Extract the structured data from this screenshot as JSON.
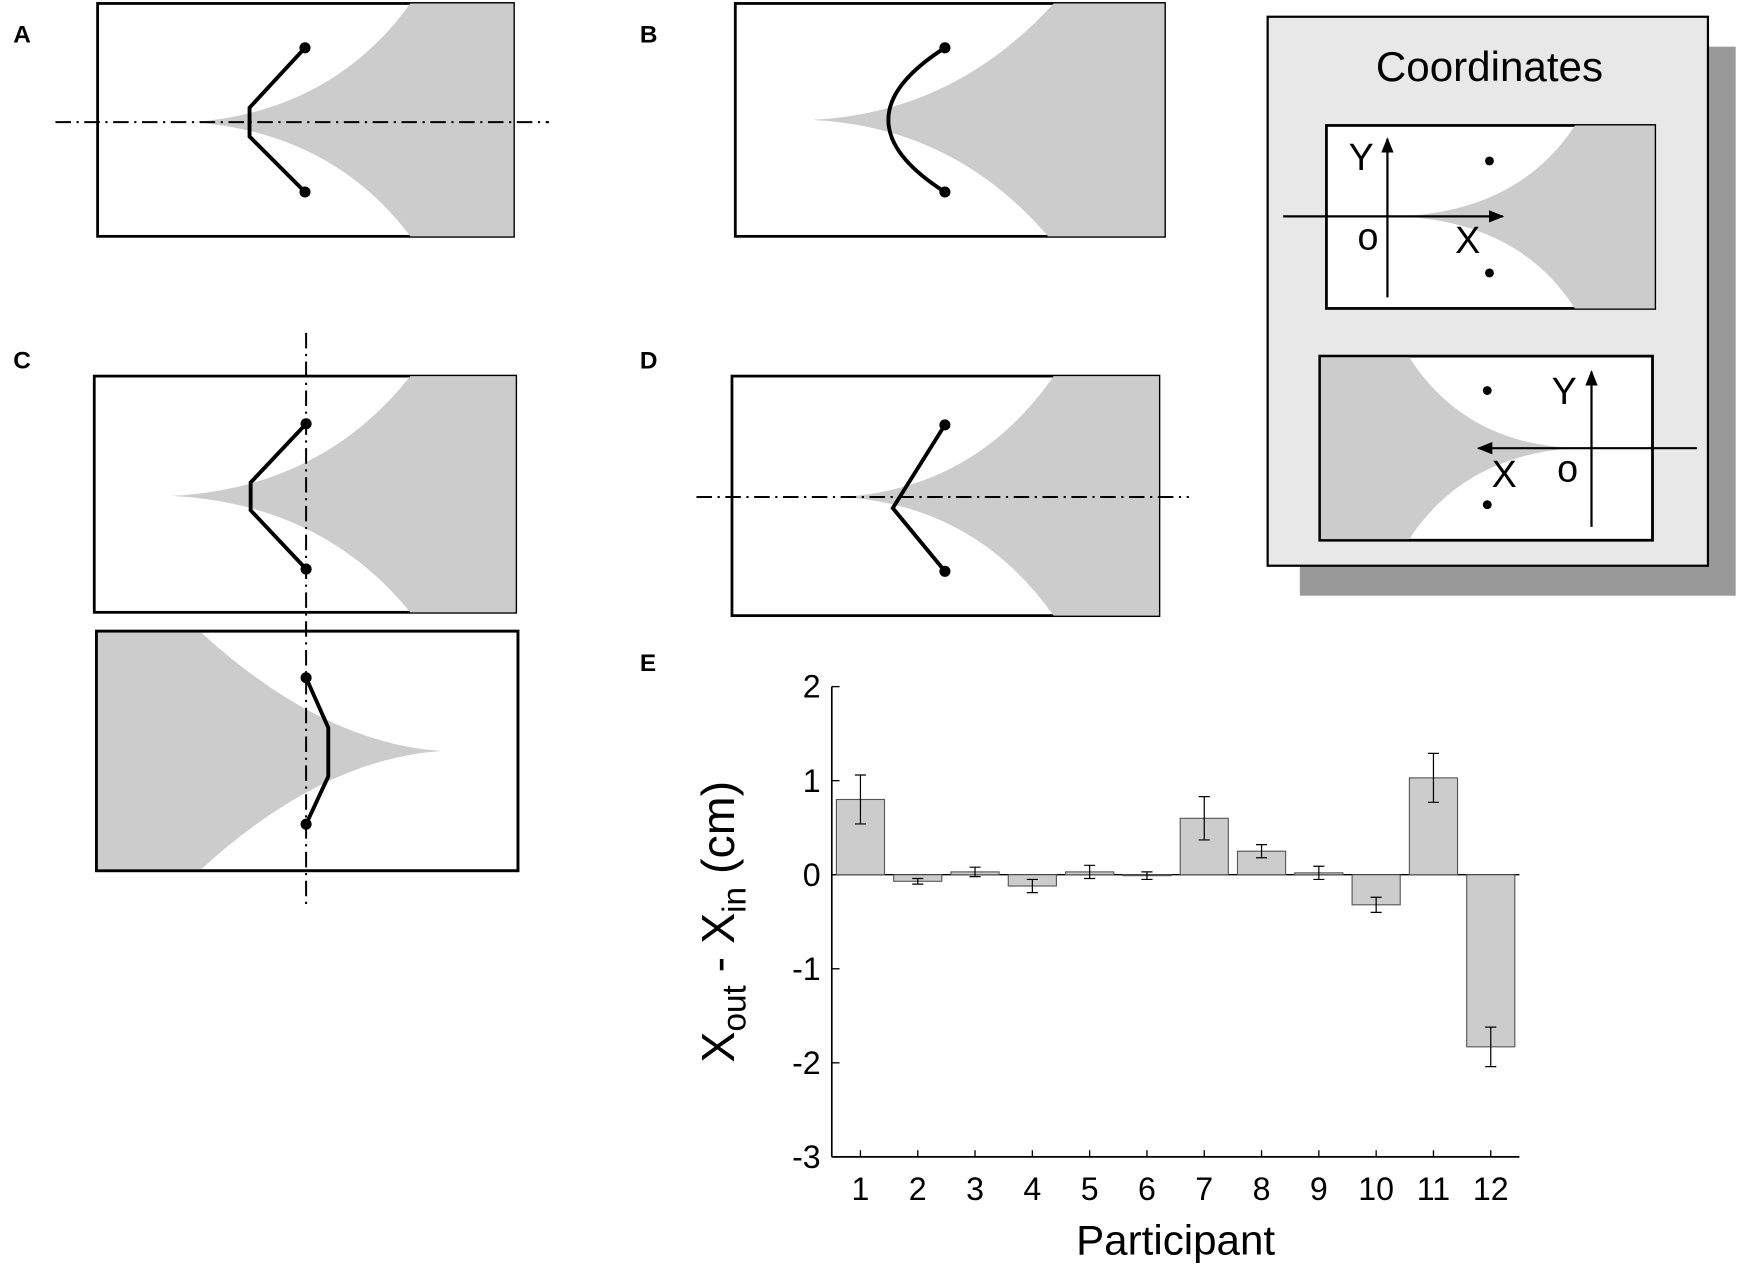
{
  "panel_labels": [
    "A",
    "B",
    "C",
    "D",
    "E"
  ],
  "coordinates": {
    "title": "Coordinates",
    "frames": [
      {
        "y": "Y",
        "origin": "o",
        "x": "X"
      },
      {
        "y": "Y",
        "origin": "o",
        "x": "X"
      }
    ]
  },
  "chart_data": {
    "type": "bar",
    "categories": [
      "1",
      "2",
      "3",
      "4",
      "5",
      "6",
      "7",
      "8",
      "9",
      "10",
      "11",
      "12"
    ],
    "values": [
      0.8,
      -0.07,
      0.03,
      -0.12,
      0.03,
      -0.01,
      0.6,
      0.25,
      0.02,
      -0.32,
      1.03,
      -1.83
    ],
    "errors": [
      0.26,
      0.03,
      0.05,
      0.07,
      0.07,
      0.04,
      0.23,
      0.07,
      0.07,
      0.08,
      0.26,
      0.21
    ],
    "color": "#cccccc",
    "xlabel": "Participant",
    "ylabel": [
      "X",
      "out",
      " - X",
      "in",
      " (cm)"
    ],
    "ylim": [
      -3,
      2
    ],
    "yticks": [
      2,
      1,
      0,
      -1,
      -2,
      -3
    ]
  }
}
